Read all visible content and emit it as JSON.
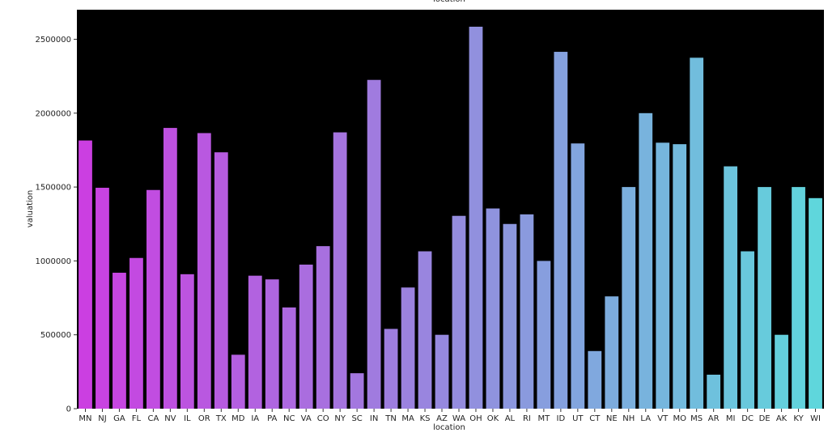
{
  "chart_data": {
    "type": "bar",
    "title": "location",
    "xlabel": "location",
    "ylabel": "valuation",
    "categories": [
      "MN",
      "NJ",
      "GA",
      "FL",
      "CA",
      "NV",
      "IL",
      "OR",
      "TX",
      "MD",
      "IA",
      "PA",
      "NC",
      "VA",
      "CO",
      "NY",
      "SC",
      "IN",
      "TN",
      "MA",
      "KS",
      "AZ",
      "WA",
      "OH",
      "OK",
      "AL",
      "RI",
      "MT",
      "ID",
      "UT",
      "CT",
      "NE",
      "NH",
      "LA",
      "VT",
      "MO",
      "MS",
      "AR",
      "MI",
      "DC",
      "DE",
      "AK",
      "KY",
      "WI"
    ],
    "values": [
      1815000,
      1495000,
      920000,
      1020000,
      1480000,
      1900000,
      910000,
      1865000,
      1735000,
      365000,
      900000,
      875000,
      685000,
      975000,
      1100000,
      1870000,
      240000,
      2225000,
      540000,
      820000,
      1065000,
      500000,
      1305000,
      2585000,
      1355000,
      1250000,
      1315000,
      1000000,
      2415000,
      1795000,
      390000,
      760000,
      1500000,
      2000000,
      1800000,
      1790000,
      2375000,
      230000,
      1640000,
      1065000,
      1500000,
      500000,
      1500000,
      1425000
    ],
    "ylim": [
      0,
      2700000
    ],
    "yticks": [
      0,
      500000,
      1000000,
      1500000,
      2000000,
      2500000
    ],
    "ytick_labels": [
      "0",
      "500000",
      "1000000",
      "1500000",
      "2000000",
      "2500000"
    ],
    "grid": false,
    "colors": {
      "plot_background": "#000000",
      "palette_start": "#cb3fe1",
      "palette_end": "#5fd6dc"
    }
  }
}
